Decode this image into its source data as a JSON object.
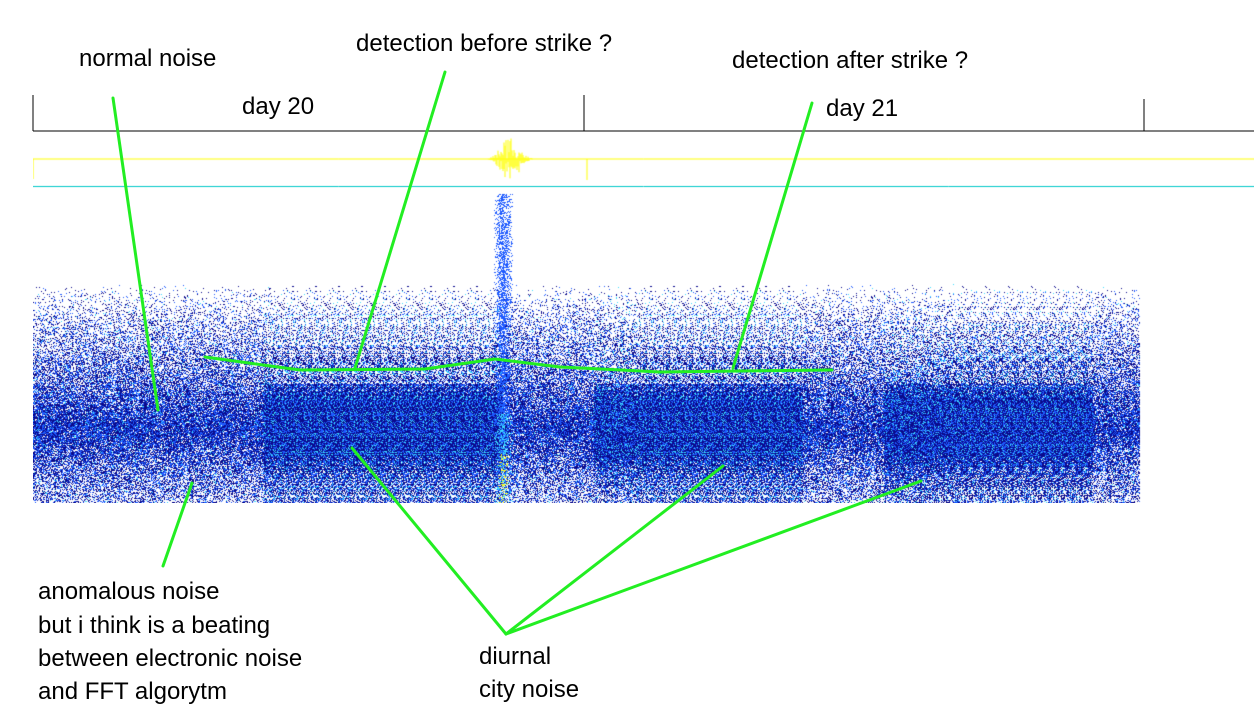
{
  "colors": {
    "background": "#000000",
    "signal_trace": "#ffff00",
    "reference_line": "#00c8c8",
    "noise_dark": "#0a0a8c",
    "noise_mid": "#1e5aff",
    "noise_bright": "#3cdcff",
    "burst": "#ffff28",
    "annotation": "#22ee22"
  },
  "axis": {
    "day_labels": [
      "day 20",
      "day 21"
    ]
  },
  "labels": {
    "normal_noise": "normal noise",
    "detection_before": "detection before strike ?",
    "detection_after": "detection after strike ?",
    "anomalous": [
      "anomalous noise",
      "but i think is a beating",
      "between electronic noise",
      "and FFT algorytm"
    ],
    "diurnal": [
      "diurnal",
      "city noise"
    ]
  }
}
